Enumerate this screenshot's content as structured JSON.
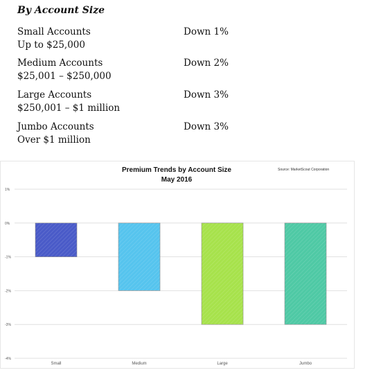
{
  "heading": "By Account Size",
  "accounts": [
    {
      "name": "Small Accounts",
      "range": "Up to $25,000",
      "change": "Down 1%"
    },
    {
      "name": "Medium Accounts",
      "range": "$25,001 – $250,000",
      "change": "Down 2%"
    },
    {
      "name": "Large Accounts",
      "range": "$250,001 – $1 million",
      "change": "Down 3%"
    },
    {
      "name": "Jumbo Accounts",
      "range": "Over $1 million",
      "change": "Down 3%"
    }
  ],
  "chart_data": {
    "type": "bar",
    "title": "Premium Trends by Account Size",
    "subtitle": "May 2016",
    "source": "Source: MarketScout Corporation",
    "categories": [
      "Small",
      "Medium",
      "Large",
      "Jumbo"
    ],
    "values": [
      -1,
      -2,
      -3,
      -3
    ],
    "colors": [
      "#4a5bc8",
      "#56c4ee",
      "#a7e24c",
      "#4fc9a5"
    ],
    "ylim": [
      -4,
      1
    ],
    "yticks": [
      1,
      0,
      -1,
      -2,
      -3,
      -4
    ],
    "ytick_labels": [
      "1%",
      "0%",
      "-1%",
      "-2%",
      "-3%",
      "-4%"
    ],
    "grid": true,
    "xlabel": "",
    "ylabel": ""
  }
}
